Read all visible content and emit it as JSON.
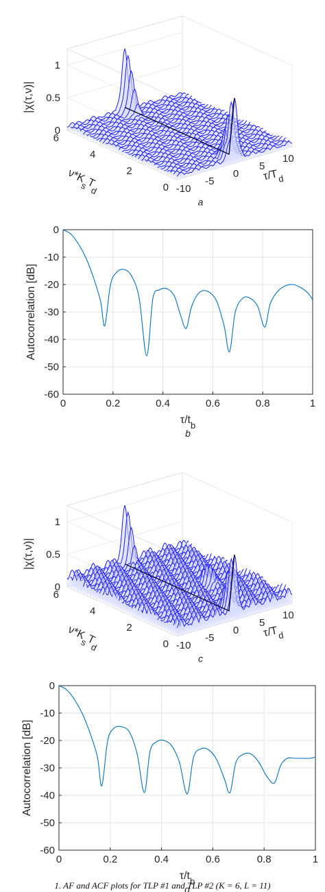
{
  "caption": "1. AF and ACF plots for TLP #1 and TLP #2 (K  = 6, L  = 11)",
  "chart_data": [
    {
      "panel": "a",
      "type": "surface3d",
      "zlabel": "|χ(τ,ν)|",
      "ylabel": "ν*K s T d",
      "xlabel": "τ/T d",
      "z_ticks": [
        "0",
        "0.5",
        "1"
      ],
      "y_ticks": [
        "0",
        "2",
        "4",
        "6"
      ],
      "x_ticks": [
        "-10",
        "-5",
        "0",
        "5",
        "10"
      ],
      "xlim": [
        -11,
        11
      ],
      "ylim": [
        0,
        6
      ],
      "zlim": [
        0,
        1
      ],
      "color": "#1a1aff",
      "peaks": [
        {
          "x": 0,
          "y": 6,
          "z": 1.0
        },
        {
          "x": 0,
          "y": 0,
          "z": 1.0
        },
        {
          "x": -1,
          "y": 0,
          "z": 0.35
        }
      ],
      "sidelobe_level": 0.1
    },
    {
      "panel": "b",
      "type": "line",
      "ylabel": "Autocorrelation [dB]",
      "xlabel": "τ/t b",
      "xlim": [
        0,
        1
      ],
      "ylim": [
        -60,
        0
      ],
      "x_ticks": [
        "0",
        "0.2",
        "0.4",
        "0.6",
        "0.8",
        "1"
      ],
      "y_ticks": [
        "0",
        "-10",
        "-20",
        "-30",
        "-40",
        "-50",
        "-60"
      ],
      "grid": true,
      "color": "#0072bd",
      "series": [
        {
          "x": [
            0,
            0.03,
            0.06,
            0.09,
            0.12,
            0.15,
            0.167,
            0.19,
            0.215,
            0.245,
            0.275,
            0.305,
            0.335,
            0.36,
            0.385,
            0.415,
            0.445,
            0.47,
            0.493,
            0.515,
            0.545,
            0.58,
            0.615,
            0.645,
            0.667,
            0.69,
            0.72,
            0.75,
            0.78,
            0.808,
            0.83,
            0.86,
            0.89,
            0.92,
            0.95,
            0.98,
            1.0
          ],
          "y": [
            0,
            -1.5,
            -5,
            -10,
            -17,
            -26,
            -35,
            -20,
            -15.5,
            -14.5,
            -17,
            -25,
            -46,
            -25,
            -22,
            -21.5,
            -24,
            -31,
            -36,
            -28,
            -23,
            -22.5,
            -26,
            -35,
            -44.5,
            -30,
            -25,
            -25,
            -28,
            -35.5,
            -27,
            -22.5,
            -20.5,
            -20,
            -21,
            -23,
            -25.5
          ]
        }
      ]
    },
    {
      "panel": "c",
      "type": "surface3d",
      "zlabel": "|χ(τ,ν)|",
      "ylabel": "ν*K s T d",
      "xlabel": "τ/T d",
      "z_ticks": [
        "0",
        "0.5",
        "1"
      ],
      "y_ticks": [
        "0",
        "2",
        "4",
        "6"
      ],
      "x_ticks": [
        "-10",
        "-5",
        "0",
        "5",
        "10"
      ],
      "xlim": [
        -11,
        11
      ],
      "ylim": [
        0,
        6
      ],
      "zlim": [
        0,
        1
      ],
      "color": "#1a1aff",
      "peaks": [
        {
          "x": 0,
          "y": 6,
          "z": 1.0
        },
        {
          "x": 0,
          "y": 0,
          "z": 1.0
        },
        {
          "x": 4,
          "y": 2.5,
          "z": 0.45
        }
      ],
      "sidelobe_level": 0.25
    },
    {
      "panel": "d",
      "type": "line",
      "ylabel": "Autocorrelation [dB]",
      "xlabel": "τ/t b",
      "xlim": [
        0,
        1
      ],
      "ylim": [
        -60,
        0
      ],
      "x_ticks": [
        "0",
        "0.2",
        "0.4",
        "0.6",
        "0.8",
        "1"
      ],
      "y_ticks": [
        "0",
        "-10",
        "-20",
        "-30",
        "-40",
        "-50",
        "-60"
      ],
      "grid": true,
      "color": "#0072bd",
      "series": [
        {
          "x": [
            0,
            0.03,
            0.06,
            0.09,
            0.12,
            0.15,
            0.167,
            0.19,
            0.215,
            0.245,
            0.275,
            0.305,
            0.333,
            0.355,
            0.38,
            0.41,
            0.44,
            0.47,
            0.5,
            0.525,
            0.555,
            0.585,
            0.615,
            0.645,
            0.667,
            0.69,
            0.72,
            0.75,
            0.78,
            0.81,
            0.84,
            0.865,
            0.89,
            0.92,
            0.95,
            0.98,
            1.0
          ],
          "y": [
            0,
            -1.5,
            -5,
            -10,
            -17,
            -26,
            -36.5,
            -20,
            -15.5,
            -15,
            -17,
            -25,
            -39,
            -24,
            -20.5,
            -20,
            -22,
            -28,
            -39.5,
            -26,
            -23,
            -23.5,
            -27,
            -34,
            -39,
            -28,
            -25,
            -25,
            -28,
            -33,
            -35.5,
            -29,
            -26.5,
            -26.5,
            -26.5,
            -26.5,
            -26
          ]
        }
      ]
    }
  ]
}
